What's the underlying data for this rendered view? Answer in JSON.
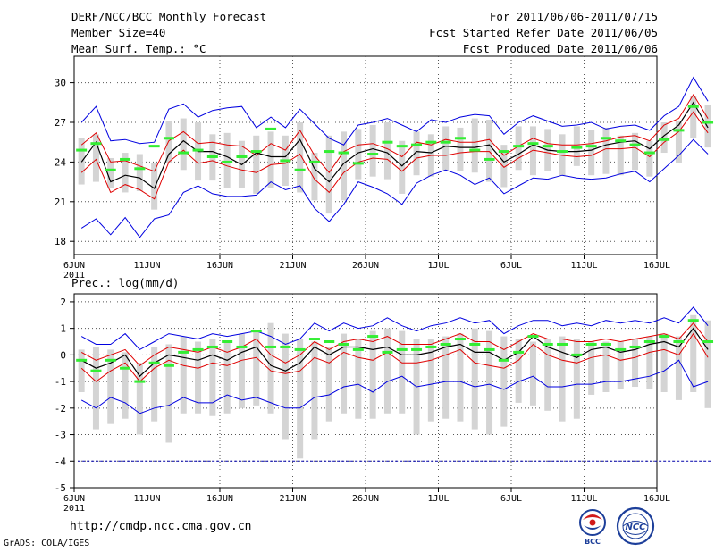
{
  "header": {
    "title": "DERF/NCC/BCC Monthly Forecast",
    "member_size": "Member Size=40",
    "variable": "Mean Surf. Temp.: °C",
    "period": "For 2011/06/06-2011/07/15",
    "fcst_started": "Fcst Started Refer Date 2011/06/05",
    "fcst_produced": "Fcst Produced Date 2011/06/06"
  },
  "footer": {
    "url": "http://cmdp.ncc.cma.gov.cn",
    "credit": "GrADS: COLA/IGES",
    "logo_bcc": "BCC",
    "logo_ncc": "NCC"
  },
  "colors": {
    "median": "#000000",
    "spread_inner": "#e00000",
    "spread_outer": "#0000e0",
    "box": "#d4d4d4",
    "reference": "#33ee33",
    "threshold": "#0000aa"
  },
  "chart_data": [
    {
      "type": "line",
      "title": "Mean Surf. Temp.: °C",
      "ylim": [
        17,
        32
      ],
      "yticks": [
        18,
        21,
        24,
        27,
        30
      ],
      "xticks": [
        "6JUN\n2011",
        "11JUN",
        "16JUN",
        "21JUN",
        "26JUN",
        "1JUL",
        "6JUL",
        "11JUL",
        "16JUL"
      ],
      "x_days": 40,
      "grid": true,
      "series": [
        {
          "name": "max",
          "values": [
            27.0,
            28.2,
            25.6,
            25.7,
            25.4,
            25.5,
            28.0,
            28.4,
            27.4,
            27.9,
            28.1,
            28.2,
            26.6,
            27.4,
            26.6,
            28.0,
            26.9,
            25.8,
            25.3,
            26.8,
            27.0,
            27.3,
            26.8,
            26.3,
            27.2,
            27.0,
            27.4,
            27.6,
            27.5,
            26.1,
            27.0,
            27.5,
            27.1,
            26.7,
            26.8,
            27.0,
            26.5,
            26.7,
            26.8,
            26.4,
            27.5,
            28.2,
            30.4,
            28.6
          ]
        },
        {
          "name": "upper",
          "values": [
            25.3,
            26.2,
            24.0,
            24.1,
            23.7,
            23.3,
            25.6,
            26.3,
            25.4,
            25.5,
            25.3,
            25.2,
            24.5,
            25.4,
            24.9,
            26.4,
            24.5,
            23.2,
            24.8,
            25.3,
            25.4,
            25.0,
            24.4,
            25.5,
            25.3,
            25.7,
            25.5,
            25.5,
            25.7,
            24.5,
            25.2,
            25.8,
            25.4,
            25.3,
            25.3,
            25.4,
            25.6,
            25.9,
            26.0,
            25.6,
            26.8,
            27.3,
            29.1,
            27.3
          ]
        },
        {
          "name": "median",
          "values": [
            24.0,
            25.5,
            22.5,
            23.0,
            22.8,
            22.0,
            24.6,
            25.6,
            24.8,
            24.8,
            24.4,
            23.8,
            24.7,
            24.4,
            24.4,
            25.7,
            23.5,
            22.5,
            23.9,
            24.7,
            25.0,
            24.7,
            23.7,
            24.8,
            24.7,
            25.2,
            25.1,
            25.1,
            25.3,
            24.0,
            24.6,
            25.3,
            24.9,
            24.8,
            24.8,
            24.9,
            25.3,
            25.5,
            25.6,
            25.0,
            26.0,
            26.8,
            28.5,
            26.6
          ]
        },
        {
          "name": "lower",
          "values": [
            23.2,
            24.2,
            21.7,
            22.3,
            21.9,
            21.2,
            24.0,
            24.9,
            23.9,
            24.1,
            23.7,
            23.4,
            23.2,
            23.8,
            23.9,
            24.6,
            22.7,
            21.7,
            23.2,
            24.0,
            24.3,
            24.2,
            23.3,
            24.3,
            24.5,
            24.5,
            24.7,
            24.8,
            24.8,
            23.6,
            24.3,
            24.9,
            24.7,
            24.5,
            24.4,
            24.5,
            25.0,
            25.0,
            25.1,
            24.4,
            25.5,
            26.3,
            27.8,
            26.2
          ]
        },
        {
          "name": "min",
          "values": [
            19.0,
            19.7,
            18.5,
            19.8,
            18.3,
            19.7,
            20.0,
            21.7,
            22.2,
            21.6,
            21.4,
            21.4,
            21.5,
            22.5,
            21.9,
            22.2,
            20.5,
            19.5,
            20.8,
            22.5,
            22.1,
            21.6,
            20.8,
            22.4,
            23.0,
            23.4,
            23.0,
            22.3,
            22.8,
            21.6,
            22.2,
            22.8,
            22.7,
            23.0,
            22.8,
            22.7,
            22.8,
            23.1,
            23.3,
            22.5,
            23.5,
            24.5,
            25.7,
            24.6
          ]
        },
        {
          "name": "box_top",
          "values": [
            25.8,
            26.1,
            24.3,
            24.7,
            24.6,
            23.9,
            27.1,
            27.3,
            27.0,
            26.1,
            26.2,
            25.6,
            26.0,
            26.3,
            26.0,
            27.0,
            24.7,
            26.0,
            26.3,
            26.5,
            26.8,
            27.0,
            25.6,
            26.3,
            26.1,
            26.7,
            26.6,
            27.3,
            27.2,
            25.3,
            26.7,
            26.7,
            26.5,
            26.1,
            26.7,
            26.4,
            26.6,
            26.0,
            26.2,
            25.6,
            27.0,
            27.1,
            29.0,
            28.3
          ]
        },
        {
          "name": "box_bottom",
          "values": [
            22.3,
            22.5,
            22.0,
            21.7,
            21.8,
            20.4,
            23.9,
            23.4,
            22.6,
            22.6,
            22.0,
            22.0,
            21.6,
            22.0,
            22.2,
            21.7,
            21.1,
            20.1,
            21.1,
            22.7,
            22.9,
            22.7,
            21.6,
            23.0,
            22.9,
            23.4,
            23.3,
            23.2,
            22.5,
            22.1,
            23.4,
            23.0,
            23.3,
            23.0,
            23.7,
            23.0,
            23.1,
            23.0,
            23.4,
            22.9,
            24.7,
            23.9,
            25.8,
            25.1
          ]
        },
        {
          "name": "reference",
          "values": [
            24.9,
            25.4,
            23.4,
            24.2,
            23.5,
            25.2,
            25.8,
            24.7,
            24.9,
            24.4,
            24.0,
            24.4,
            24.8,
            26.5,
            24.1,
            23.4,
            24.0,
            24.8,
            24.7,
            23.9,
            24.6,
            25.5,
            25.2,
            25.3,
            25.5,
            25.5,
            25.8,
            24.9,
            24.2,
            24.8,
            25.2,
            25.4,
            25.2,
            24.8,
            25.1,
            25.2,
            25.8,
            25.6,
            25.3,
            24.7,
            25.7,
            26.4,
            28.2,
            27.0
          ]
        }
      ]
    },
    {
      "type": "line",
      "title": "Prec.: log(mm/d)",
      "ylim": [
        -5,
        2.3
      ],
      "yticks": [
        -5,
        -4,
        -3,
        -2,
        -1,
        0,
        1,
        2
      ],
      "xticks": [
        "6JUN\n2011",
        "11JUN",
        "16JUN",
        "21JUN",
        "26JUN",
        "1JUL",
        "6JUL",
        "11JUL",
        "16JUL"
      ],
      "x_days": 40,
      "grid": true,
      "series": [
        {
          "name": "max",
          "values": [
            0.7,
            0.4,
            0.4,
            0.8,
            0.2,
            0.5,
            0.8,
            0.7,
            0.6,
            0.8,
            0.7,
            0.8,
            0.9,
            0.7,
            0.4,
            0.6,
            1.2,
            0.9,
            1.2,
            1.0,
            1.1,
            1.4,
            1.1,
            0.9,
            1.1,
            1.2,
            1.4,
            1.2,
            1.3,
            0.8,
            1.1,
            1.3,
            1.3,
            1.1,
            1.2,
            1.1,
            1.3,
            1.2,
            1.3,
            1.2,
            1.4,
            1.2,
            1.8,
            1.1
          ]
        },
        {
          "name": "upper",
          "values": [
            0.1,
            -0.2,
            0.0,
            0.2,
            -0.4,
            0.0,
            0.3,
            0.2,
            0.1,
            0.3,
            0.1,
            0.3,
            0.6,
            0.0,
            -0.3,
            0.0,
            0.5,
            0.2,
            0.5,
            0.6,
            0.5,
            0.7,
            0.4,
            0.4,
            0.4,
            0.6,
            0.8,
            0.5,
            0.5,
            0.2,
            0.5,
            0.8,
            0.6,
            0.6,
            0.5,
            0.5,
            0.6,
            0.5,
            0.6,
            0.7,
            0.8,
            0.6,
            1.2,
            0.5
          ]
        },
        {
          "name": "median",
          "values": [
            -0.2,
            -0.5,
            -0.3,
            0.0,
            -0.8,
            -0.3,
            0.0,
            -0.1,
            -0.2,
            0.0,
            -0.2,
            0.1,
            0.3,
            -0.4,
            -0.6,
            -0.3,
            0.3,
            0.0,
            0.3,
            0.3,
            0.2,
            0.3,
            0.0,
            0.0,
            0.1,
            0.3,
            0.4,
            0.1,
            0.1,
            -0.2,
            0.1,
            0.7,
            0.3,
            0.1,
            -0.1,
            0.2,
            0.3,
            0.1,
            0.2,
            0.4,
            0.5,
            0.3,
            1.0,
            0.2
          ]
        },
        {
          "name": "lower",
          "values": [
            -0.5,
            -1.0,
            -0.6,
            -0.3,
            -1.0,
            -0.5,
            -0.2,
            -0.4,
            -0.5,
            -0.3,
            -0.4,
            -0.2,
            -0.1,
            -0.6,
            -0.7,
            -0.6,
            -0.1,
            -0.3,
            0.1,
            -0.1,
            -0.2,
            0.1,
            -0.3,
            -0.3,
            -0.2,
            0.0,
            0.2,
            -0.3,
            -0.4,
            -0.5,
            -0.2,
            0.4,
            0.0,
            -0.2,
            -0.3,
            -0.1,
            0.0,
            -0.2,
            -0.1,
            0.1,
            0.2,
            0.0,
            0.8,
            -0.1
          ]
        },
        {
          "name": "min",
          "values": [
            -1.7,
            -2.0,
            -1.6,
            -1.8,
            -2.2,
            -2.0,
            -1.9,
            -1.6,
            -1.8,
            -1.8,
            -1.5,
            -1.7,
            -1.6,
            -1.8,
            -2.0,
            -2.0,
            -1.6,
            -1.5,
            -1.2,
            -1.1,
            -1.4,
            -1.0,
            -0.8,
            -1.2,
            -1.1,
            -1.0,
            -1.0,
            -1.2,
            -1.1,
            -1.3,
            -1.0,
            -0.8,
            -1.2,
            -1.2,
            -1.1,
            -1.1,
            -1.0,
            -1.0,
            -0.9,
            -0.8,
            -0.6,
            -0.2,
            -1.2,
            -1.0
          ]
        },
        {
          "name": "box_top",
          "values": [
            0.2,
            0.3,
            0.2,
            0.1,
            -0.3,
            0.3,
            0.4,
            0.7,
            0.5,
            0.6,
            0.5,
            0.8,
            0.9,
            1.2,
            0.8,
            0.6,
            0.5,
            0.3,
            0.8,
            0.6,
            0.9,
            1.0,
            0.9,
            0.6,
            0.6,
            0.7,
            0.8,
            1.0,
            0.9,
            0.7,
            0.6,
            0.5,
            0.6,
            0.7,
            0.6,
            0.5,
            0.5,
            0.5,
            0.6,
            0.7,
            0.8,
            0.7,
            1.5,
            1.3
          ]
        },
        {
          "name": "box_bottom",
          "values": [
            -1.4,
            -2.8,
            -2.6,
            -2.4,
            -3.0,
            -2.5,
            -3.3,
            -2.2,
            -2.2,
            -2.3,
            -2.2,
            -2.0,
            -1.9,
            -2.2,
            -3.2,
            -3.9,
            -3.2,
            -2.5,
            -2.2,
            -2.4,
            -2.4,
            -2.2,
            -2.2,
            -3.0,
            -2.5,
            -2.4,
            -2.5,
            -2.8,
            -3.0,
            -2.7,
            -1.8,
            -1.9,
            -2.1,
            -2.5,
            -2.4,
            -1.5,
            -1.4,
            -1.3,
            -1.2,
            -1.3,
            -1.4,
            -1.7,
            -1.4,
            -2.0
          ]
        },
        {
          "name": "reference",
          "values": [
            -0.2,
            -0.6,
            -0.2,
            -0.5,
            -1.0,
            -0.3,
            -0.4,
            0.1,
            0.2,
            0.3,
            0.5,
            0.3,
            0.9,
            0.3,
            0.3,
            0.2,
            0.6,
            0.5,
            0.4,
            0.2,
            0.7,
            0.1,
            0.2,
            0.2,
            0.3,
            0.4,
            0.6,
            0.4,
            0.2,
            -0.2,
            0.1,
            0.7,
            0.4,
            0.4,
            0.0,
            0.4,
            0.4,
            0.2,
            0.3,
            0.5,
            0.7,
            0.5,
            1.3,
            0.5
          ]
        },
        {
          "name": "threshold",
          "values": [
            -4,
            -4
          ]
        }
      ]
    }
  ]
}
